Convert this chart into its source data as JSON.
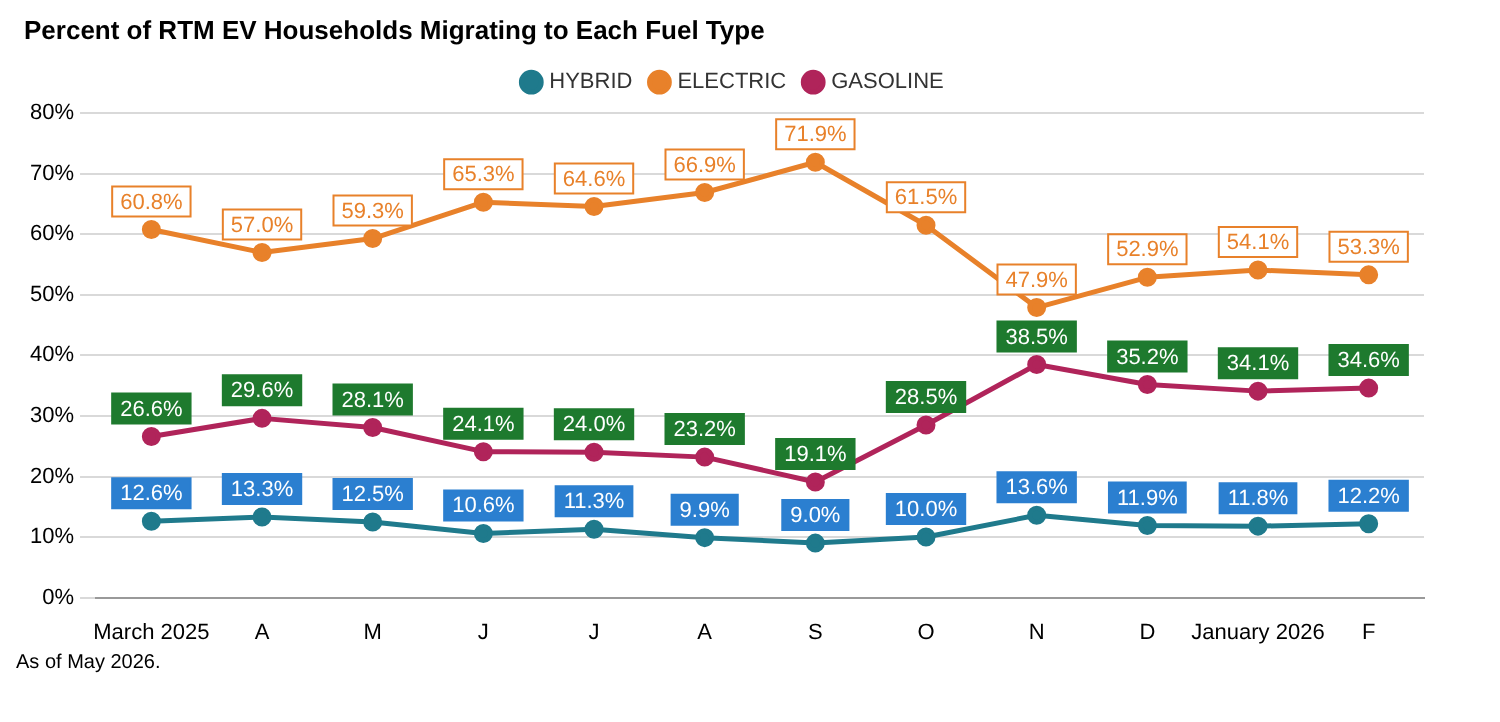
{
  "chart_data": {
    "type": "line",
    "title": "Percent of RTM EV Households Migrating to Each Fuel Type",
    "categories": [
      "March 2025",
      "A",
      "M",
      "J",
      "J",
      "A",
      "S",
      "O",
      "N",
      "D",
      "January 2026",
      "F"
    ],
    "series": [
      {
        "name": "HYBRID",
        "color": "#1f7a8c",
        "values": [
          12.6,
          13.3,
          12.5,
          10.6,
          11.3,
          9.9,
          9.0,
          10.0,
          13.6,
          11.9,
          11.8,
          12.2
        ],
        "value_labels": [
          "12.6%",
          "13.3%",
          "12.5%",
          "10.6%",
          "11.3%",
          "9.9%",
          "9.0%",
          "10.0%",
          "13.6%",
          "11.9%",
          "11.8%",
          "12.2%"
        ]
      },
      {
        "name": "ELECTRIC",
        "color": "#e8812a",
        "values": [
          60.8,
          57.0,
          59.3,
          65.3,
          64.6,
          66.9,
          71.9,
          61.5,
          47.9,
          52.9,
          54.1,
          53.3
        ],
        "value_labels": [
          "60.8%",
          "57.0%",
          "59.3%",
          "65.3%",
          "64.6%",
          "66.9%",
          "71.9%",
          "61.5%",
          "47.9%",
          "52.9%",
          "54.1%",
          "53.3%"
        ]
      },
      {
        "name": "GASOLINE",
        "color": "#b0245a",
        "values": [
          26.6,
          29.6,
          28.1,
          24.1,
          24.0,
          23.2,
          19.1,
          28.5,
          38.5,
          35.2,
          34.1,
          34.6
        ],
        "value_labels": [
          "26.6%",
          "29.6%",
          "28.1%",
          "24.1%",
          "24.0%",
          "23.2%",
          "19.1%",
          "28.5%",
          "38.5%",
          "35.2%",
          "34.1%",
          "34.6%"
        ]
      }
    ],
    "ylim": [
      0,
      80
    ],
    "yticks": [
      {
        "value": 0,
        "label": "0%"
      },
      {
        "value": 10,
        "label": "10%"
      },
      {
        "value": 20,
        "label": "20%"
      },
      {
        "value": 30,
        "label": "30%"
      },
      {
        "value": 40,
        "label": "40%"
      },
      {
        "value": 50,
        "label": "50%"
      },
      {
        "value": 60,
        "label": "60%"
      },
      {
        "value": 70,
        "label": "70%"
      },
      {
        "value": 80,
        "label": "80%"
      }
    ],
    "grid": "y",
    "legend": "top",
    "marker": "circle",
    "line_style": "solid",
    "annotations": [
      "As of May 2026."
    ]
  }
}
